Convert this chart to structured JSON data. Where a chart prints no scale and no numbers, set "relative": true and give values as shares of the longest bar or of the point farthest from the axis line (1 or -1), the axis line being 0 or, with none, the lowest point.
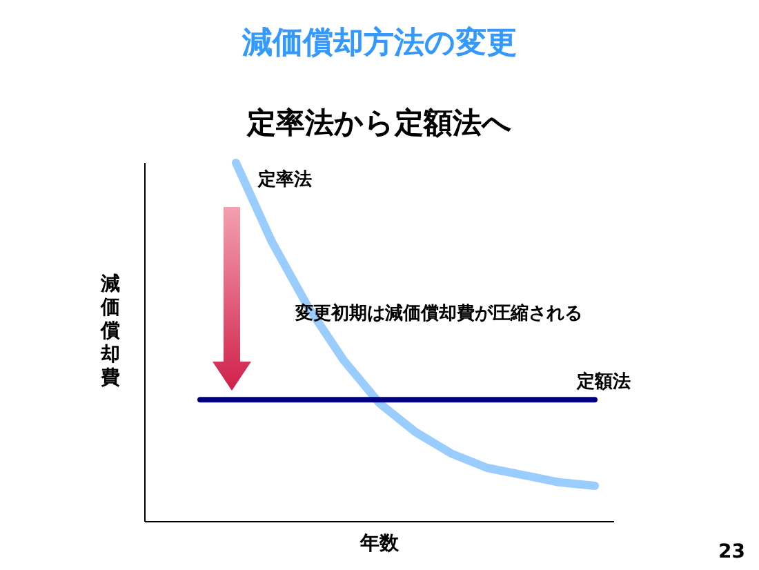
{
  "chart_data": {
    "type": "line",
    "title": "減価償却方法の変更",
    "subtitle": "定率法から定額法へ",
    "xlabel": "年数",
    "ylabel": "減価償却費",
    "relative": true,
    "categories": [
      null,
      null,
      null,
      null,
      null,
      null,
      null,
      null,
      null,
      null,
      null,
      null
    ],
    "series": [
      {
        "name": "定率法",
        "color": "#99ccff",
        "values": [
          null,
          1,
          0.78,
          0.6,
          0.45,
          0.33,
          0.25,
          0.19,
          0.15,
          0.13,
          0.11,
          0.1
        ]
      },
      {
        "name": "定額法",
        "color": "#000080",
        "values": [
          0.34,
          0.34,
          0.34,
          0.34,
          0.34,
          0.34,
          0.34,
          0.34,
          0.34,
          0.34,
          0.34,
          0.34
        ]
      }
    ],
    "annotations": [
      "変更初期は減価償却費が圧縮される",
      "23"
    ]
  }
}
